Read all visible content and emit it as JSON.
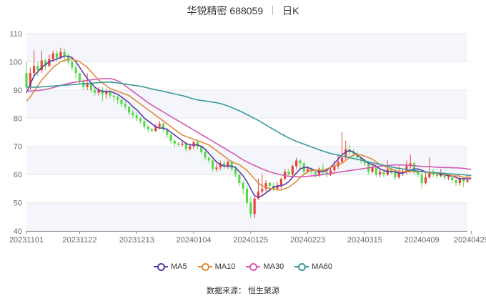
{
  "title": {
    "name": "华锐精密 688059",
    "period": "日K"
  },
  "source_text": "数据来源： 恒生聚源",
  "colors": {
    "up": "#e8443a",
    "down": "#55d94a",
    "ma5": "#5b3aa8",
    "ma10": "#e08a3c",
    "ma30": "#d25ab0",
    "ma60": "#3a9a98",
    "grid": "#e8e8e8",
    "band": "#f4f6fc",
    "axis": "#666666"
  },
  "chart_data": {
    "type": "candlestick",
    "ylim": [
      40,
      110
    ],
    "yticks": [
      40,
      50,
      60,
      70,
      80,
      90,
      100,
      110
    ],
    "x_tick_labels": [
      "20231101",
      "20231122",
      "20231213",
      "20240104",
      "20240125",
      "20240223",
      "20240315",
      "20240409",
      "20240429"
    ],
    "x_tick_index": [
      0,
      14,
      29,
      44,
      59,
      74,
      89,
      104,
      117
    ],
    "legend": [
      "MA5",
      "MA10",
      "MA30",
      "MA60"
    ],
    "candles": [
      [
        96.0,
        91.0,
        100.0,
        90.0
      ],
      [
        91.0,
        96.0,
        98.0,
        90.0
      ],
      [
        96.0,
        98.5,
        104.0,
        95.0
      ],
      [
        98.5,
        97.0,
        100.0,
        95.0
      ],
      [
        97.0,
        100.5,
        104.0,
        96.0
      ],
      [
        100.5,
        98.5,
        101.0,
        97.0
      ],
      [
        98.5,
        101.0,
        102.5,
        98.0
      ],
      [
        101.0,
        103.0,
        104.0,
        100.0
      ],
      [
        103.0,
        101.5,
        104.0,
        100.0
      ],
      [
        101.5,
        103.5,
        105.0,
        101.0
      ],
      [
        103.5,
        102.0,
        104.5,
        100.0
      ],
      [
        102.0,
        100.0,
        103.0,
        99.0
      ],
      [
        100.0,
        98.0,
        101.0,
        97.0
      ],
      [
        98.0,
        96.0,
        99.0,
        94.0
      ],
      [
        96.0,
        93.0,
        96.0,
        92.0
      ],
      [
        93.0,
        91.0,
        94.0,
        90.0
      ],
      [
        91.0,
        92.5,
        96.0,
        90.0
      ],
      [
        92.5,
        90.0,
        93.0,
        89.0
      ],
      [
        90.0,
        89.0,
        91.0,
        88.0
      ],
      [
        89.0,
        90.0,
        91.0,
        88.0
      ],
      [
        90.0,
        88.5,
        91.0,
        86.0
      ],
      [
        88.5,
        89.5,
        90.5,
        87.0
      ],
      [
        89.5,
        88.0,
        90.0,
        87.0
      ],
      [
        88.0,
        87.5,
        89.0,
        86.0
      ],
      [
        87.5,
        86.5,
        88.0,
        85.0
      ],
      [
        86.5,
        85.0,
        87.0,
        84.0
      ],
      [
        85.0,
        84.0,
        86.0,
        83.0
      ],
      [
        84.0,
        82.0,
        84.5,
        81.0
      ],
      [
        82.0,
        81.0,
        83.0,
        80.0
      ],
      [
        81.0,
        80.0,
        82.0,
        79.0
      ],
      [
        80.0,
        79.0,
        80.5,
        78.0
      ],
      [
        79.0,
        77.0,
        79.5,
        76.0
      ],
      [
        77.0,
        76.0,
        77.5,
        75.0
      ],
      [
        76.0,
        75.5,
        76.5,
        75.0
      ],
      [
        75.5,
        77.0,
        78.0,
        75.0
      ],
      [
        77.0,
        78.0,
        79.0,
        76.0
      ],
      [
        78.0,
        76.0,
        78.5,
        75.0
      ],
      [
        76.0,
        74.0,
        76.5,
        73.0
      ],
      [
        74.0,
        72.0,
        74.5,
        71.0
      ],
      [
        72.0,
        71.0,
        72.5,
        70.0
      ],
      [
        71.0,
        70.5,
        71.5,
        70.0
      ],
      [
        70.5,
        71.0,
        72.0,
        70.0
      ],
      [
        71.0,
        69.0,
        71.5,
        68.0
      ],
      [
        69.0,
        70.0,
        71.0,
        68.5
      ],
      [
        70.0,
        71.5,
        72.0,
        69.0
      ],
      [
        71.5,
        70.0,
        72.0,
        69.0
      ],
      [
        70.0,
        68.0,
        70.5,
        67.0
      ],
      [
        68.0,
        66.0,
        68.5,
        65.0
      ],
      [
        66.0,
        65.0,
        66.5,
        64.0
      ],
      [
        65.0,
        62.0,
        65.5,
        61.0
      ],
      [
        62.0,
        62.5,
        64.0,
        61.0
      ],
      [
        62.5,
        64.0,
        65.0,
        61.5
      ],
      [
        64.0,
        63.0,
        65.0,
        62.0
      ],
      [
        63.0,
        64.5,
        65.0,
        62.0
      ],
      [
        64.5,
        62.0,
        65.0,
        61.0
      ],
      [
        62.0,
        60.0,
        63.0,
        59.0
      ],
      [
        60.0,
        57.0,
        60.0,
        56.0
      ],
      [
        57.0,
        55.0,
        58.0,
        53.0
      ],
      [
        55.0,
        50.0,
        56.0,
        49.0
      ],
      [
        50.0,
        46.0,
        52.0,
        44.5
      ],
      [
        46.0,
        51.5,
        52.0,
        44.5
      ],
      [
        51.5,
        54.0,
        58.5,
        51.0
      ],
      [
        54.0,
        55.0,
        60.0,
        53.0
      ],
      [
        55.0,
        57.0,
        58.0,
        54.0
      ],
      [
        57.0,
        56.0,
        57.5,
        54.0
      ],
      [
        56.0,
        55.0,
        57.0,
        54.0
      ],
      [
        55.0,
        56.0,
        57.5,
        54.5
      ],
      [
        56.0,
        58.5,
        59.0,
        55.0
      ],
      [
        58.5,
        61.0,
        62.0,
        58.0
      ],
      [
        61.0,
        60.0,
        62.0,
        59.5
      ],
      [
        60.0,
        63.0,
        63.5,
        59.0
      ],
      [
        63.0,
        65.0,
        66.0,
        62.0
      ],
      [
        65.0,
        64.0,
        65.5,
        62.0
      ],
      [
        64.0,
        61.0,
        64.5,
        60.0
      ],
      [
        61.0,
        62.0,
        63.0,
        60.5
      ],
      [
        62.0,
        61.0,
        62.5,
        60.0
      ],
      [
        61.0,
        60.0,
        61.5,
        59.0
      ],
      [
        60.0,
        62.0,
        62.5,
        59.0
      ],
      [
        62.0,
        61.0,
        64.0,
        60.0
      ],
      [
        61.0,
        60.0,
        61.5,
        59.0
      ],
      [
        60.0,
        61.5,
        63.0,
        59.5
      ],
      [
        61.5,
        63.0,
        65.0,
        61.0
      ],
      [
        63.0,
        64.5,
        67.0,
        62.0
      ],
      [
        64.5,
        66.0,
        75.0,
        64.0
      ],
      [
        66.0,
        69.0,
        72.0,
        65.0
      ],
      [
        69.0,
        68.0,
        70.5,
        66.0
      ],
      [
        68.0,
        67.5,
        69.0,
        66.0
      ],
      [
        67.5,
        66.0,
        68.0,
        65.0
      ],
      [
        66.0,
        65.0,
        66.5,
        64.0
      ],
      [
        65.0,
        64.0,
        65.5,
        63.0
      ],
      [
        64.0,
        61.0,
        64.5,
        60.0
      ],
      [
        61.0,
        62.5,
        64.0,
        60.5
      ],
      [
        62.5,
        60.0,
        63.0,
        59.0
      ],
      [
        60.0,
        61.0,
        62.0,
        59.0
      ],
      [
        61.0,
        60.0,
        61.5,
        59.0
      ],
      [
        60.0,
        62.0,
        65.0,
        59.5
      ],
      [
        62.0,
        61.0,
        62.5,
        60.0
      ],
      [
        61.0,
        59.0,
        61.5,
        58.0
      ],
      [
        59.0,
        60.5,
        63.0,
        58.5
      ],
      [
        60.5,
        61.0,
        62.0,
        59.5
      ],
      [
        61.0,
        63.0,
        65.0,
        60.0
      ],
      [
        63.0,
        64.0,
        67.0,
        62.0
      ],
      [
        64.0,
        61.0,
        64.5,
        60.0
      ],
      [
        61.0,
        60.0,
        62.0,
        59.0
      ],
      [
        60.0,
        57.0,
        60.5,
        55.0
      ],
      [
        57.0,
        59.0,
        61.0,
        56.5
      ],
      [
        59.0,
        61.0,
        66.0,
        58.5
      ],
      [
        61.0,
        60.0,
        62.0,
        59.0
      ],
      [
        60.0,
        59.5,
        61.0,
        58.5
      ],
      [
        59.5,
        60.5,
        62.0,
        59.0
      ],
      [
        60.5,
        59.0,
        61.0,
        58.0
      ],
      [
        59.0,
        59.0,
        60.0,
        58.0
      ],
      [
        59.0,
        58.0,
        59.5,
        57.0
      ],
      [
        58.0,
        57.0,
        58.5,
        56.0
      ],
      [
        57.0,
        58.5,
        59.5,
        56.0
      ],
      [
        58.5,
        57.5,
        59.0,
        55.5
      ],
      [
        57.5,
        58.0,
        60.0,
        57.0
      ]
    ],
    "ma": [
      {
        "name": "MA5",
        "values": [
          89.0,
          92.0,
          95.0,
          96.5,
          98.0,
          99.0,
          100.0,
          100.5,
          101.0,
          101.5,
          102.0,
          102.0,
          101.5,
          100.0,
          98.0,
          96.0,
          94.0,
          92.5,
          91.0,
          90.0,
          89.5,
          89.5,
          89.5,
          89.0,
          88.5,
          87.5,
          86.5,
          85.5,
          84.0,
          83.0,
          81.5,
          80.0,
          79.0,
          78.0,
          77.0,
          76.5,
          76.5,
          76.0,
          75.0,
          74.0,
          73.0,
          72.0,
          71.0,
          70.5,
          70.5,
          70.5,
          70.0,
          69.0,
          67.5,
          66.0,
          64.5,
          63.5,
          63.0,
          63.0,
          63.0,
          62.5,
          61.0,
          59.5,
          57.5,
          55.0,
          52.5,
          52.0,
          52.5,
          53.5,
          54.5,
          55.5,
          56.0,
          56.0,
          56.5,
          57.5,
          59.0,
          60.5,
          62.0,
          62.5,
          62.5,
          62.0,
          61.5,
          61.0,
          61.0,
          61.5,
          62.5,
          64.0,
          65.5,
          67.0,
          68.0,
          68.5,
          68.0,
          67.0,
          66.0,
          65.0,
          64.0,
          63.5,
          63.0,
          62.0,
          61.5,
          61.0,
          61.0,
          61.0,
          60.5,
          60.5,
          61.0,
          61.5,
          62.0,
          62.0,
          61.5,
          61.0,
          60.5,
          60.5,
          60.5,
          60.0,
          60.0,
          59.5,
          59.5,
          59.0,
          58.5,
          58.5,
          58.5,
          58.5
        ]
      },
      {
        "name": "MA10",
        "values": [
          86.0,
          87.5,
          89.5,
          91.5,
          93.5,
          95.0,
          96.5,
          98.0,
          99.0,
          100.0,
          100.5,
          101.0,
          101.0,
          100.5,
          100.0,
          99.0,
          98.0,
          96.5,
          95.0,
          93.5,
          92.5,
          91.5,
          90.5,
          90.0,
          89.5,
          89.0,
          88.5,
          88.0,
          87.0,
          86.0,
          85.0,
          84.0,
          83.0,
          82.0,
          81.0,
          80.0,
          79.0,
          78.0,
          77.0,
          76.0,
          75.0,
          74.0,
          73.5,
          73.0,
          72.5,
          72.0,
          71.5,
          71.0,
          70.5,
          69.5,
          68.5,
          67.5,
          66.5,
          65.5,
          64.5,
          64.0,
          63.5,
          62.5,
          61.5,
          60.0,
          58.5,
          57.0,
          56.0,
          55.5,
          55.0,
          55.0,
          54.5,
          54.5,
          55.0,
          55.5,
          56.5,
          57.5,
          59.0,
          60.0,
          61.0,
          61.5,
          61.5,
          61.5,
          61.5,
          62.0,
          62.5,
          63.0,
          63.5,
          64.0,
          65.0,
          66.0,
          67.0,
          67.0,
          67.0,
          66.5,
          66.0,
          65.5,
          64.5,
          63.5,
          63.0,
          62.5,
          62.0,
          61.5,
          61.0,
          61.0,
          61.0,
          61.0,
          61.0,
          61.0,
          61.0,
          61.0,
          60.5,
          60.5,
          60.5,
          60.5,
          60.0,
          60.0,
          59.5,
          59.5,
          59.5,
          59.0,
          59.0,
          59.0
        ]
      },
      {
        "name": "MA30",
        "values": [
          89.5,
          89.6,
          89.7,
          89.8,
          90.0,
          90.2,
          90.5,
          90.8,
          91.2,
          91.6,
          92.0,
          92.3,
          92.6,
          92.8,
          93.0,
          93.2,
          93.4,
          93.6,
          93.8,
          93.9,
          94.0,
          94.0,
          94.0,
          93.8,
          93.2,
          92.5,
          91.5,
          90.5,
          89.5,
          88.5,
          87.5,
          86.5,
          85.5,
          84.6,
          83.8,
          83.0,
          82.2,
          81.4,
          80.6,
          79.8,
          79.0,
          78.2,
          77.4,
          76.6,
          75.8,
          75.0,
          74.2,
          73.4,
          72.6,
          71.8,
          71.0,
          70.2,
          69.4,
          68.6,
          67.8,
          67.0,
          66.0,
          65.2,
          64.5,
          63.8,
          63.2,
          62.6,
          62.0,
          61.5,
          61.0,
          60.6,
          60.2,
          59.9,
          59.6,
          59.4,
          59.3,
          59.2,
          59.2,
          59.3,
          59.4,
          59.5,
          59.6,
          59.8,
          60.0,
          60.2,
          60.4,
          60.6,
          60.8,
          61.0,
          61.2,
          61.4,
          61.6,
          61.8,
          62.0,
          62.2,
          62.4,
          62.6,
          62.8,
          63.0,
          63.1,
          63.2,
          63.3,
          63.4,
          63.4,
          63.4,
          63.3,
          63.2,
          63.1,
          63.0,
          62.9,
          62.8,
          62.8,
          62.7,
          62.6,
          62.6,
          62.5,
          62.5,
          62.4,
          62.4,
          62.3,
          62.2,
          62.0,
          61.8
        ]
      },
      {
        "name": "MA60",
        "values": [
          91.0,
          91.0,
          91.0,
          91.0,
          91.1,
          91.2,
          91.3,
          91.4,
          91.5,
          91.6,
          91.7,
          91.8,
          91.9,
          92.0,
          92.1,
          92.2,
          92.3,
          92.4,
          92.5,
          92.6,
          92.7,
          92.8,
          92.8,
          92.7,
          92.5,
          92.3,
          92.1,
          91.9,
          91.7,
          91.5,
          91.3,
          91.0,
          90.7,
          90.4,
          90.1,
          89.8,
          89.5,
          89.2,
          88.9,
          88.6,
          88.3,
          88.0,
          87.6,
          87.2,
          86.8,
          86.5,
          86.3,
          86.1,
          85.9,
          85.7,
          85.5,
          85.2,
          84.8,
          84.3,
          83.8,
          83.2,
          82.6,
          82.0,
          81.3,
          80.6,
          79.9,
          79.2,
          78.4,
          77.6,
          76.8,
          76.0,
          75.2,
          74.4,
          73.7,
          73.0,
          72.4,
          71.8,
          71.3,
          70.8,
          70.3,
          69.8,
          69.3,
          68.8,
          68.3,
          67.9,
          67.5,
          67.2,
          66.9,
          66.6,
          66.3,
          66.0,
          65.7,
          65.4,
          65.1,
          64.8,
          64.5,
          64.2,
          63.9,
          63.6,
          63.3,
          63.0,
          62.7,
          62.4,
          62.2,
          62.0,
          61.8,
          61.6,
          61.4,
          61.2,
          61.0,
          60.9,
          60.8,
          60.7,
          60.6,
          60.5,
          60.4,
          60.3,
          60.2,
          60.1,
          60.0,
          59.9,
          59.8,
          59.7
        ]
      }
    ]
  }
}
